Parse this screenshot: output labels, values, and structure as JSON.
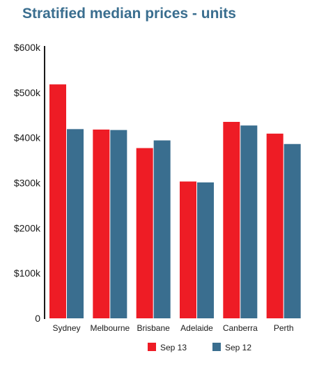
{
  "chart_data": {
    "type": "bar",
    "title": "Stratified median prices - units",
    "xlabel": "",
    "ylabel": "",
    "categories": [
      "Sydney",
      "Melbourne",
      "Brisbane",
      "Adelaide",
      "Canberra",
      "Perth"
    ],
    "series": [
      {
        "name": "Sep 13",
        "color": "#ee1c25",
        "values": [
          518,
          418,
          377,
          303,
          435,
          409
        ]
      },
      {
        "name": "Sep 12",
        "color": "#3a6e8f",
        "values": [
          419,
          417,
          394,
          301,
          427,
          386
        ]
      }
    ],
    "yticks": [
      {
        "value": 0,
        "label": "0"
      },
      {
        "value": 100,
        "label": "$100k"
      },
      {
        "value": 200,
        "label": "$200k"
      },
      {
        "value": 300,
        "label": "$300k"
      },
      {
        "value": 400,
        "label": "$400k"
      },
      {
        "value": 500,
        "label": "$500k"
      },
      {
        "value": 600,
        "label": "$600k"
      }
    ],
    "ylim": [
      0,
      600
    ],
    "grid": false,
    "legend_position": "bottom"
  }
}
